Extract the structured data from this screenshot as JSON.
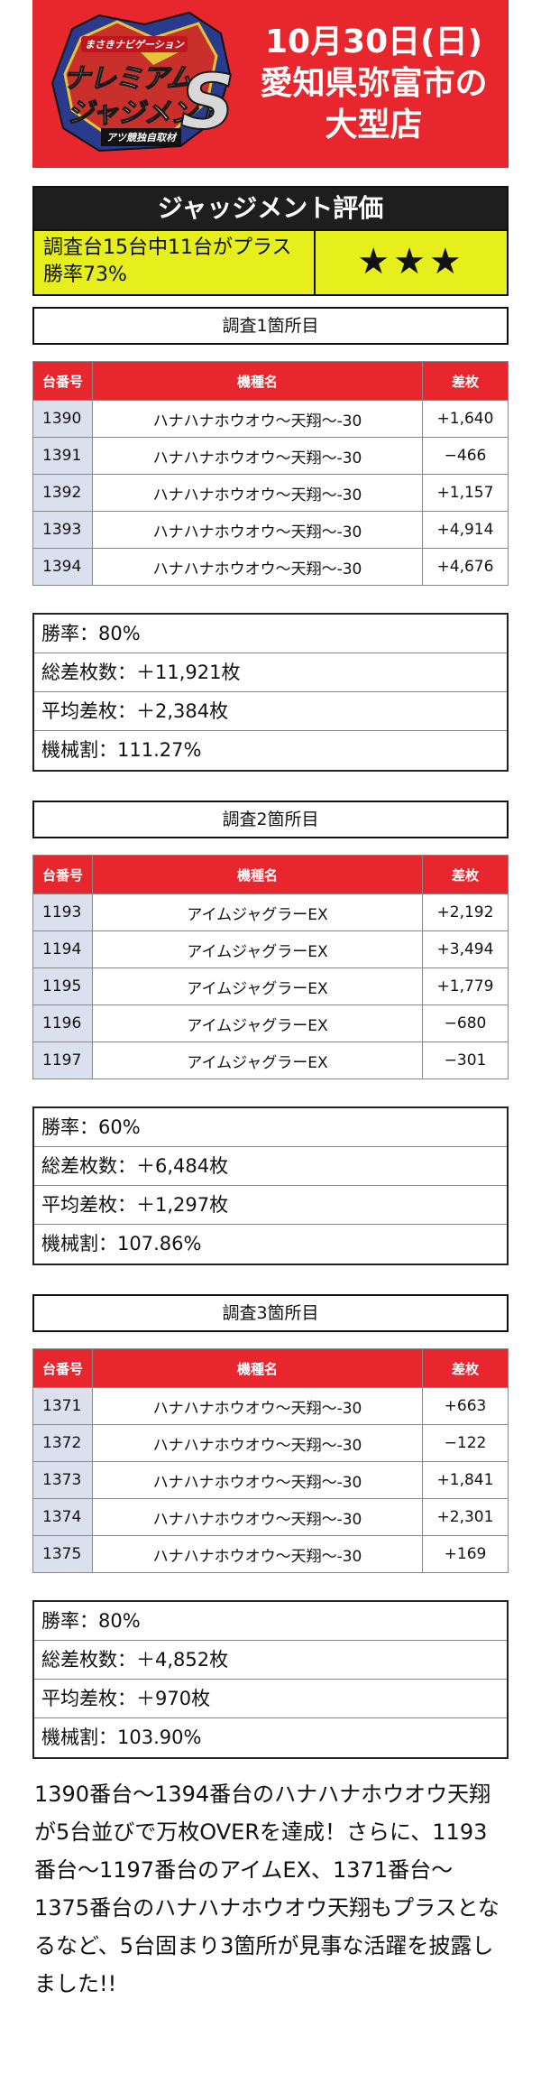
{
  "logo": {
    "top_text": "まさきナビゲーション",
    "line1": "ナレミアム",
    "line2": "ジャジメント",
    "big_letter": "S",
    "sub_text": "アツ競独自取材"
  },
  "header": {
    "date": "10月30日(日)",
    "line2": "愛知県弥富市の",
    "line3": "大型店"
  },
  "judgement": {
    "title": "ジャッジメント評価",
    "desc_line1": "調査台15台中11台がプラス",
    "desc_line2": "勝率73%",
    "stars": "★★★"
  },
  "table_headers": {
    "num": "台番号",
    "name": "機種名",
    "diff": "差枚"
  },
  "sections": [
    {
      "title": "調査1箇所目",
      "rows": [
        {
          "num": "1390",
          "name": "ハナハナホウオウ〜天翔〜-30",
          "diff": "+1,640"
        },
        {
          "num": "1391",
          "name": "ハナハナホウオウ〜天翔〜-30",
          "diff": "−466"
        },
        {
          "num": "1392",
          "name": "ハナハナホウオウ〜天翔〜-30",
          "diff": "+1,157"
        },
        {
          "num": "1393",
          "name": "ハナハナホウオウ〜天翔〜-30",
          "diff": "+4,914"
        },
        {
          "num": "1394",
          "name": "ハナハナホウオウ〜天翔〜-30",
          "diff": "+4,676"
        }
      ],
      "stats": [
        "勝率：80%",
        "総差枚数：＋11,921枚",
        "平均差枚：＋2,384枚",
        "機械割：111.27%"
      ]
    },
    {
      "title": "調査2箇所目",
      "rows": [
        {
          "num": "1193",
          "name": "アイムジャグラーEX",
          "diff": "+2,192"
        },
        {
          "num": "1194",
          "name": "アイムジャグラーEX",
          "diff": "+3,494"
        },
        {
          "num": "1195",
          "name": "アイムジャグラーEX",
          "diff": "+1,779"
        },
        {
          "num": "1196",
          "name": "アイムジャグラーEX",
          "diff": "−680"
        },
        {
          "num": "1197",
          "name": "アイムジャグラーEX",
          "diff": "−301"
        }
      ],
      "stats": [
        "勝率：60%",
        "総差枚数：＋6,484枚",
        "平均差枚：＋1,297枚",
        "機械割：107.86%"
      ]
    },
    {
      "title": "調査3箇所目",
      "rows": [
        {
          "num": "1371",
          "name": "ハナハナホウオウ〜天翔〜-30",
          "diff": "+663"
        },
        {
          "num": "1372",
          "name": "ハナハナホウオウ〜天翔〜-30",
          "diff": "−122"
        },
        {
          "num": "1373",
          "name": "ハナハナホウオウ〜天翔〜-30",
          "diff": "+1,841"
        },
        {
          "num": "1374",
          "name": "ハナハナホウオウ〜天翔〜-30",
          "diff": "+2,301"
        },
        {
          "num": "1375",
          "name": "ハナハナホウオウ〜天翔〜-30",
          "diff": "+169"
        }
      ],
      "stats": [
        "勝率：80%",
        "総差枚数：＋4,852枚",
        "平均差枚：＋970枚",
        "機械割：103.90%"
      ]
    }
  ],
  "summary": "1390番台〜1394番台のハナハナホウオウ天翔が5台並びで万枚OVERを達成！さらに、1193番台〜1197番台のアイムEX、1371番台〜1375番台のハナハナホウオウ天翔もプラスとなるなど、5台固まり3箇所が見事な活躍を披露しました!!",
  "colors": {
    "header_red": "#e8262d",
    "judge_yellow": "#e6ee1c",
    "num_cell_bg": "#dbe0ee"
  }
}
